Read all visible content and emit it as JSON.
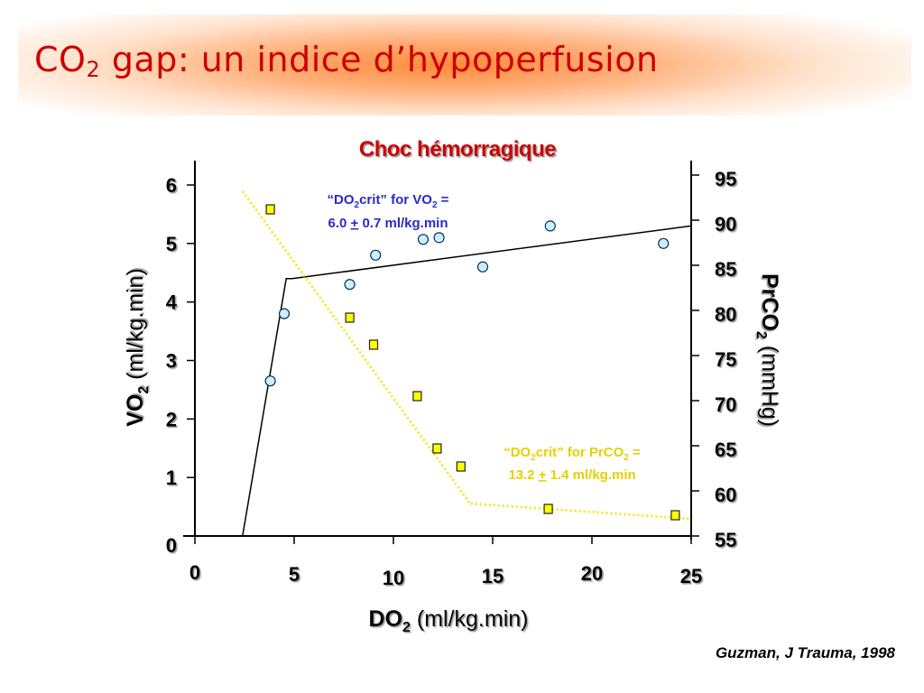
{
  "title": {
    "prefix": "CO",
    "subscript": "2",
    "rest": " gap: un indice d’hypoperfusion"
  },
  "citation": "Guzman, J Trauma, 1998",
  "colors": {
    "title": "#cc0000",
    "chart_title": "#cc0000",
    "vo2_annotation": "#2a2acc",
    "prco2_annotation": "#e6d000",
    "vo2_marker_fill": "#cdeeff",
    "prco2_marker_fill": "#ffff00",
    "prco2_line": "#f0e800"
  },
  "chart_data": {
    "type": "scatter",
    "title": "Choc hémorragique",
    "xlabel": {
      "main": "DO",
      "sub": "2",
      "unit": " (ml/kg.min)"
    },
    "ylabel_left": {
      "main": "VO",
      "sub": "2",
      "unit": " (ml/kg.min)"
    },
    "ylabel_right": {
      "main": "PrCO",
      "sub": "2",
      "unit": " (mmHg)"
    },
    "xlim": [
      0,
      25
    ],
    "ylim_left": [
      0,
      6
    ],
    "ylim_right": [
      55,
      95
    ],
    "x_ticks": [
      "0",
      "5",
      "10",
      "15",
      "20",
      "25"
    ],
    "y_left_ticks": [
      "0",
      "1",
      "2",
      "3",
      "4",
      "5",
      "6"
    ],
    "y_right_ticks": [
      "55",
      "60",
      "65",
      "70",
      "75",
      "80",
      "85",
      "90",
      "95"
    ],
    "grid": false,
    "series": [
      {
        "name": "VO2",
        "axis": "left",
        "marker": "circle",
        "points": [
          [
            3.8,
            2.65
          ],
          [
            4.5,
            3.8
          ],
          [
            7.8,
            4.3
          ],
          [
            9.1,
            4.8
          ],
          [
            11.5,
            5.07
          ],
          [
            12.3,
            5.1
          ],
          [
            14.5,
            4.6
          ],
          [
            17.9,
            5.3
          ],
          [
            23.6,
            5.0
          ]
        ]
      },
      {
        "name": "PrCO2",
        "axis": "right",
        "marker": "square",
        "points": [
          [
            3.8,
            91.2
          ],
          [
            7.8,
            79.2
          ],
          [
            9.0,
            76.2
          ],
          [
            11.2,
            70.5
          ],
          [
            12.2,
            64.7
          ],
          [
            13.4,
            62.7
          ],
          [
            17.8,
            58.0
          ],
          [
            24.2,
            57.3
          ]
        ]
      }
    ],
    "fit_lines": [
      {
        "series": "VO2",
        "style": "solid",
        "points": [
          [
            2.4,
            0
          ],
          [
            4.6,
            4.4
          ],
          [
            4.9,
            4.4
          ],
          [
            25,
            5.3
          ]
        ]
      },
      {
        "series": "PrCO2",
        "style": "dotted",
        "points": [
          [
            2.4,
            93.2
          ],
          [
            13.8,
            58.8
          ],
          [
            13.8,
            58.6
          ],
          [
            25,
            56.9
          ]
        ]
      }
    ],
    "annotations": [
      {
        "id": "vo2",
        "line1": {
          "a": "“DO",
          "sub": "2",
          "b": "crit” for VO",
          "sub2": "2",
          "c": " ="
        },
        "line2": {
          "a": "6.0 ",
          "u": "+",
          "b": " 0.7 ml/kg.min"
        }
      },
      {
        "id": "prco2",
        "line1": {
          "a": "“DO",
          "sub": "2",
          "b": "crit” for PrCO",
          "sub2": "2",
          "c": " ="
        },
        "line2": {
          "a": "13.2 ",
          "u": "+",
          "b": " 1.4 ml/kg.min"
        }
      }
    ]
  }
}
